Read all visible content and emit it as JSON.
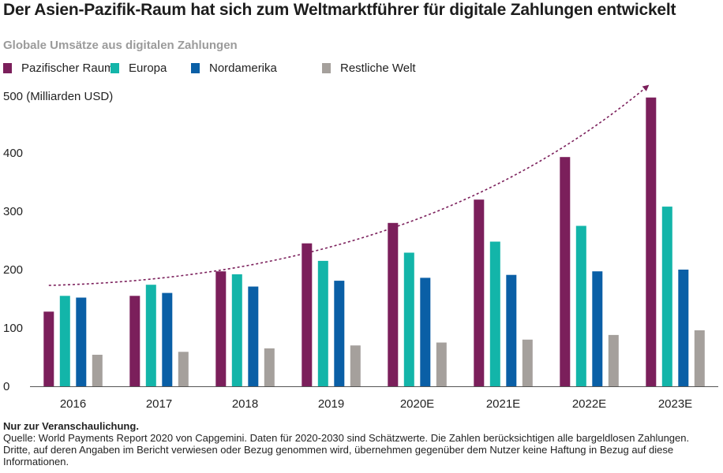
{
  "chart_data": {
    "type": "bar",
    "title": "Der Asien-Pazifik-Raum hat sich zum Weltmarktführer für digitale Zahlungen entwickelt",
    "subtitle": "Globale Umsätze aus digitalen Zahlungen",
    "ylabel": "500 (Milliarden USD)",
    "xlabel": "",
    "ylim": [
      0,
      500
    ],
    "yticks": [
      0,
      100,
      200,
      300,
      400
    ],
    "categories": [
      "2016",
      "2017",
      "2018",
      "2019",
      "2020E",
      "2021E",
      "2022E",
      "2023E"
    ],
    "series": [
      {
        "name": "Pazifischer Raum",
        "color": "#7b1f5b",
        "values": [
          128,
          155,
          197,
          245,
          280,
          320,
          393,
          495
        ]
      },
      {
        "name": "Europa",
        "color": "#13b5a9",
        "values": [
          155,
          174,
          192,
          215,
          229,
          248,
          275,
          308
        ]
      },
      {
        "name": "Nordamerika",
        "color": "#0a5fa6",
        "values": [
          152,
          160,
          171,
          181,
          186,
          191,
          197,
          200
        ]
      },
      {
        "name": "Restliche Welt",
        "color": "#a5a09c",
        "values": [
          54,
          59,
          65,
          70,
          75,
          80,
          88,
          96
        ]
      }
    ],
    "legend_position": "top-left",
    "grid": false,
    "trend_arrow": true,
    "trend_color": "#7b1f5b"
  },
  "footer": {
    "note": "Nur zur Veranschaulichung.",
    "source": "Quelle: World Payments Report 2020 von Capgemini. Daten für 2020-2030 sind Schätzwerte. Die Zahlen berücksichtigen alle bargeldlosen Zahlungen. Dritte, auf deren Angaben im Bericht verwiesen oder Bezug genommen wird, übernehmen gegenüber dem Nutzer keine Haftung in Bezug auf diese Informationen."
  }
}
